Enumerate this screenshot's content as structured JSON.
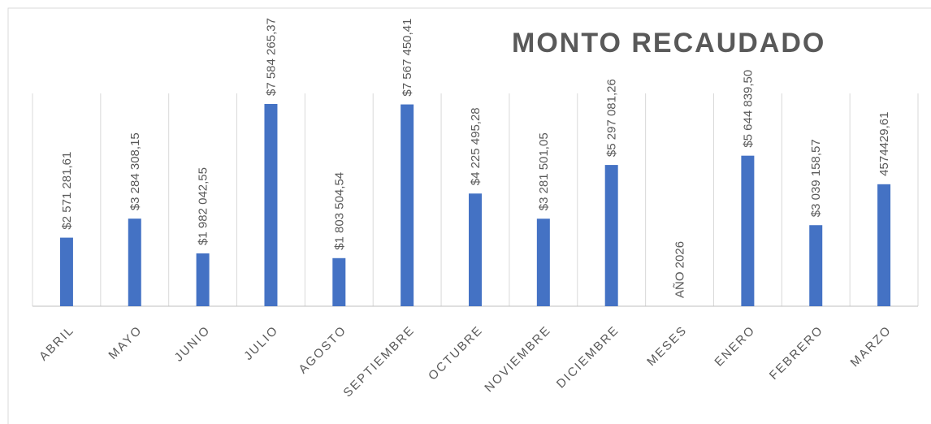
{
  "chart_data": {
    "type": "bar",
    "title": "MONTO RECAUDADO",
    "categories": [
      "ABRIL",
      "MAYO",
      "JUNIO",
      "JULIO",
      "AGOSTO",
      "SEPTIEMBRE",
      "OCTUBRE",
      "NOVIEMBRE",
      "DICIEMBRE",
      "MESES",
      "ENERO",
      "FEBRERO",
      "MARZO"
    ],
    "values": [
      2571281.61,
      3284308.15,
      1982042.55,
      7584265.37,
      1803504.54,
      7567450.41,
      4225495.28,
      3281501.05,
      5297081.26,
      null,
      5644839.5,
      3039158.57,
      4574429.61
    ],
    "value_labels": [
      "$2 571 281,61",
      "$3 284 308,15",
      "$1 982 042,55",
      "$7 584 265,37",
      "$1 803 504,54",
      "$7 567 450,41",
      "$4 225 495,28",
      "$3 281 501,05",
      "$5 297 081,26",
      "AÑO 2026",
      "$5 644 839,50",
      "$3 039 158,57",
      "4574429,61"
    ],
    "color": "#4472c4",
    "grid": true
  }
}
